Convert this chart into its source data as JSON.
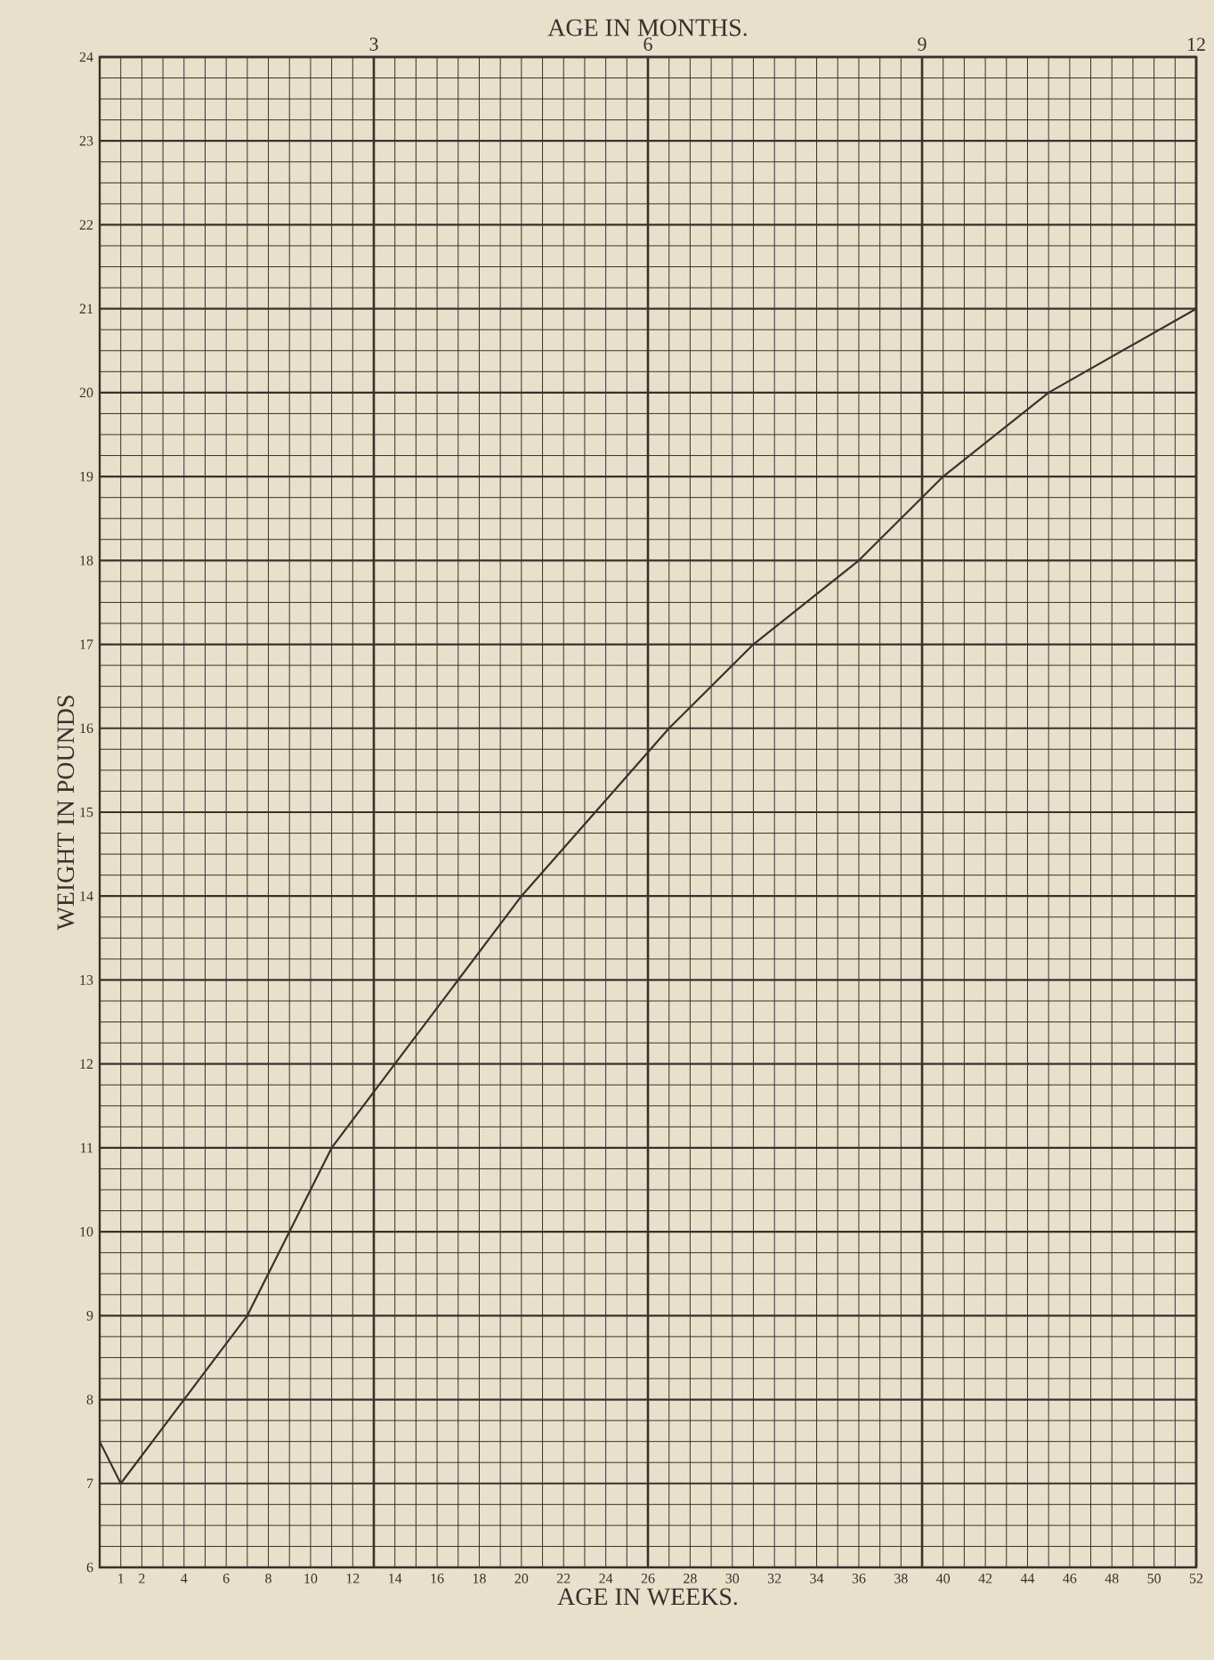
{
  "chart_data": {
    "type": "line",
    "xlabel": "AGE IN WEEKS.",
    "ylabel": "WEIGHT IN POUNDS",
    "x2label": "AGE IN MONTHS.",
    "x": [
      0,
      1,
      4,
      7,
      9,
      11,
      14,
      20,
      27,
      31,
      36,
      40,
      45,
      52
    ],
    "series": [
      {
        "color": "#3a302c",
        "values": [
          7.5,
          7,
          8,
          9,
          10,
          11,
          12,
          14,
          16,
          17,
          18,
          19,
          20,
          21
        ]
      }
    ],
    "xlim": [
      0,
      52
    ],
    "xticks": [
      1,
      2,
      4,
      6,
      8,
      10,
      12,
      14,
      16,
      18,
      20,
      22,
      24,
      26,
      28,
      30,
      32,
      34,
      36,
      38,
      40,
      42,
      44,
      46,
      48,
      50,
      52
    ],
    "ylim": [
      6,
      24
    ],
    "yticks": [
      6,
      7,
      8,
      9,
      10,
      11,
      12,
      13,
      14,
      15,
      16,
      17,
      18,
      19,
      20,
      21,
      22,
      23,
      24
    ],
    "x2lim": [
      0,
      12
    ],
    "x2ticks": [
      3,
      6,
      9,
      12
    ],
    "grid": true,
    "marker": "none",
    "line_style": "solid"
  }
}
